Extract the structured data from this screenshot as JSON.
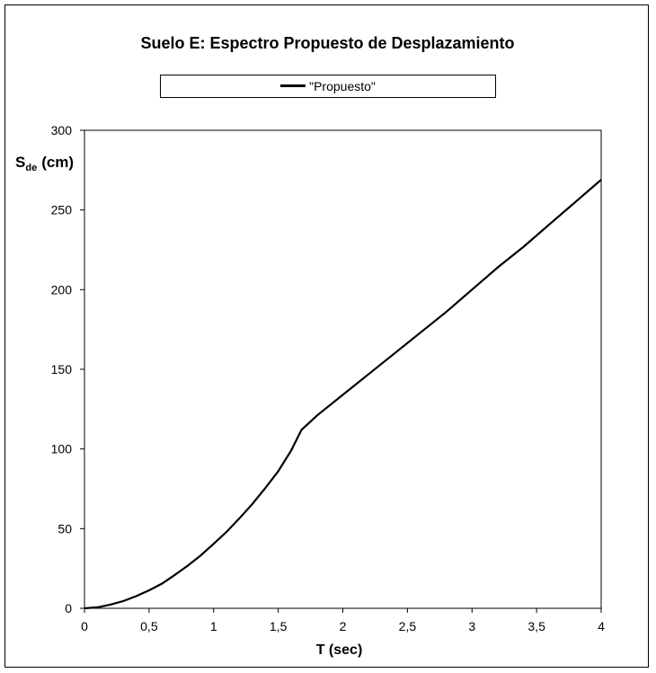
{
  "chart_data": {
    "type": "line",
    "title": "Suelo E:  Espectro Propuesto de Desplazamiento",
    "xlabel": "T (sec)",
    "ylabel_main": "S",
    "ylabel_sub": "de",
    "ylabel_unit": "(cm)",
    "xlim": [
      0,
      4
    ],
    "ylim": [
      0,
      300
    ],
    "xticks": [
      "0",
      "0,5",
      "1",
      "1,5",
      "2",
      "2,5",
      "3",
      "3,5",
      "4"
    ],
    "yticks": [
      "0",
      "50",
      "100",
      "150",
      "200",
      "250",
      "300"
    ],
    "grid": false,
    "legend_position": "top",
    "series": [
      {
        "name": "\"Propuesto\"",
        "color": "#000000",
        "x": [
          0,
          0.1,
          0.2,
          0.3,
          0.4,
          0.5,
          0.6,
          0.7,
          0.8,
          0.9,
          1.0,
          1.1,
          1.2,
          1.3,
          1.4,
          1.5,
          1.6,
          1.68,
          1.8,
          2.0,
          2.2,
          2.4,
          2.6,
          2.8,
          3.0,
          3.2,
          3.4,
          3.6,
          3.8,
          4.0
        ],
        "y": [
          0,
          0.6,
          2.3,
          4.5,
          7.6,
          11.3,
          15.5,
          21.0,
          26.8,
          33.2,
          40.5,
          48.0,
          56.5,
          65.5,
          75.5,
          86.0,
          99.0,
          112.0,
          121.0,
          134.0,
          147.0,
          160.0,
          173.0,
          186.0,
          200.0,
          214.0,
          227.0,
          241.0,
          255.0,
          269.0
        ]
      }
    ]
  }
}
